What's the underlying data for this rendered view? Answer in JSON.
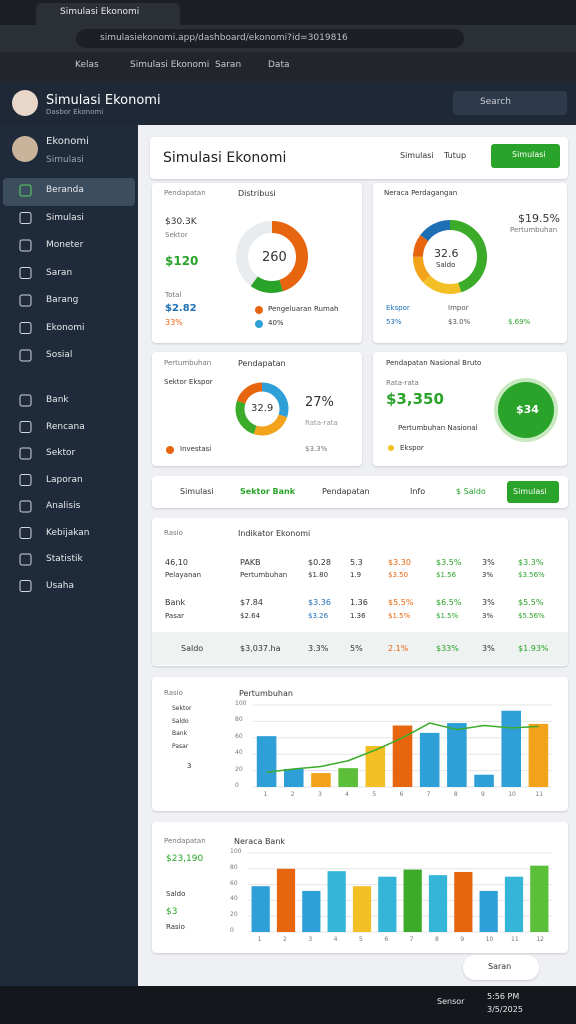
{
  "browser": {
    "tab": "Simulasi Ekonomi",
    "url": "simulasiekonomi.app/dashboard/ekonomi?id=3019816"
  },
  "toolbar": [
    "Kelas",
    "Simulasi Ekonomi",
    "Saran",
    "Data"
  ],
  "app": {
    "title": "Simulasi Ekonomi",
    "subtitle": "Dasbor Ekonomi",
    "search": "Search"
  },
  "user": {
    "name": "Ekonomi",
    "role": "Simulasi"
  },
  "nav": [
    "Beranda",
    "Simulasi",
    "Moneter",
    "Saran",
    "Barang",
    "Ekonomi",
    "Sosial",
    "Bank",
    "Rencana",
    "Sektor",
    "Laporan",
    "Analisis",
    "Kebijakan",
    "Statistik",
    "Usaha"
  ],
  "page": {
    "title": "Simulasi Ekonomi",
    "action1": "Simulasi",
    "action2": "Tutup",
    "button": "Simulasi"
  },
  "cards": [
    {
      "label": "Pendapatan",
      "title": "Distribusi",
      "stats": [
        "$30.3K",
        "Sektor",
        "$120",
        "Total",
        "$2.82",
        "33%"
      ],
      "center": "260",
      "legend": [
        "Pengeluaran Rumah",
        "40%"
      ],
      "segments": [
        {
          "value": 45,
          "color": "#e8650f"
        },
        {
          "value": 15,
          "color": "#2aa32a"
        },
        {
          "value": 40,
          "color": "#e9ecef"
        }
      ]
    },
    {
      "title": "Neraca Perdagangan",
      "value": "$19.5%",
      "note": "Pertumbuhan",
      "center": "32.6",
      "center_note": "Saldo",
      "legend": [
        "Ekspor",
        "53%",
        "Impor",
        "$3.0%",
        "$.69%"
      ],
      "segments": [
        {
          "value": 45,
          "color": "#3cab2a"
        },
        {
          "value": 18,
          "color": "#f2c025"
        },
        {
          "value": 12,
          "color": "#f2a31b"
        },
        {
          "value": 10,
          "color": "#e8650f"
        },
        {
          "value": 15,
          "color": "#1f6fb5"
        }
      ]
    },
    {
      "label": "Pertumbuhan",
      "title": "Pendapatan",
      "sub": "Sektor Ekspor",
      "center": "32.9",
      "value": "27%",
      "note": "Rata-rata",
      "legend": [
        "Investasi",
        "$3.3%"
      ],
      "segments": [
        {
          "value": 30,
          "color": "#2f9fd8"
        },
        {
          "value": 25,
          "color": "#f2a31b"
        },
        {
          "value": 25,
          "color": "#3cab2a"
        },
        {
          "value": 20,
          "color": "#e8650f"
        }
      ]
    },
    {
      "title": "Pendapatan Nasional Bruto",
      "sub": "Rata-rata",
      "value": "$3,350",
      "note": "Pertumbuhan Nasional",
      "legend": "Ekspor",
      "badge": "$34"
    }
  ],
  "tabs": [
    "Simulasi",
    "Sektor Bank",
    "Pendapatan",
    "Info",
    "$ Saldo",
    "Simulasi"
  ],
  "table": {
    "label": "Rasio",
    "title": "Indikator Ekonomi",
    "rows": [
      [
        "46,10",
        "PAKB",
        "$0.28",
        "5.3",
        "$3.30",
        "$3.5%",
        "3%",
        "$3.3%"
      ],
      [
        "Pelayanan",
        "Pertumbuhan",
        "$1.80",
        "1.9",
        "$3.50",
        "$1.56",
        "3%",
        "$3.56%"
      ],
      [
        "Bank",
        "$7.84",
        "$3.36",
        "1.36",
        "$5.5%",
        "$6.5%",
        "3%",
        "$5.5%"
      ],
      [
        "Pasar",
        "$2.64",
        "$3.26",
        "1.36",
        "$1.5%",
        "$1.5%",
        "3%",
        "$5.56%"
      ]
    ],
    "footer": [
      "Saldo",
      "$3,037.ha",
      "3.3%",
      "5%",
      "2.1%",
      "$33%",
      "3%",
      "$1.93%"
    ]
  },
  "charts": [
    {
      "label": "Rasio",
      "title": "Pertumbuhan",
      "legend": [
        "Sektor",
        "Saldo",
        "Bank",
        "Pasar"
      ],
      "note": "3",
      "ylim": [
        0,
        100
      ],
      "yticks": [
        0,
        20,
        40,
        60,
        80,
        100
      ],
      "categories": [
        "1",
        "2",
        "3",
        "4",
        "5",
        "6",
        "7",
        "8",
        "9",
        "10",
        "11"
      ],
      "values": [
        62,
        22,
        17,
        23,
        50,
        75,
        66,
        78,
        15,
        93,
        77
      ],
      "colors": [
        "#2f9fd8",
        "#2f9fd8",
        "#f2a31b",
        "#5cbf3a",
        "#f2c025",
        "#e8650f",
        "#2f9fd8",
        "#2f9fd8",
        "#2f9fd8",
        "#2f9fd8",
        "#f2a31b"
      ],
      "line": {
        "color": "#3cab2a",
        "values": [
          18,
          22,
          25,
          32,
          45,
          60,
          78,
          70,
          75,
          72,
          74
        ]
      }
    },
    {
      "label": "Pendapatan",
      "title": "Neraca Bank",
      "stats": [
        "$23,190",
        "Saldo",
        "$3",
        "Rasio"
      ],
      "ylim": [
        0,
        100
      ],
      "yticks": [
        0,
        20,
        40,
        60,
        80,
        100
      ],
      "categories": [
        "1",
        "2",
        "3",
        "4",
        "5",
        "6",
        "7",
        "8",
        "9",
        "10",
        "11",
        "12"
      ],
      "values": [
        58,
        80,
        52,
        77,
        58,
        70,
        79,
        72,
        76,
        52,
        70,
        84
      ],
      "colors": [
        "#2f9fd8",
        "#e8650f",
        "#2f9fd8",
        "#35b6d8",
        "#f2c025",
        "#35b6d8",
        "#3cab2a",
        "#35b6d8",
        "#e8650f",
        "#2f9fd8",
        "#35b6d8",
        "#5cbf3a"
      ]
    }
  ],
  "chat": "Saran",
  "taskbar": {
    "weather": "Sensor",
    "time": "5:56 PM",
    "date": "3/5/2025"
  }
}
